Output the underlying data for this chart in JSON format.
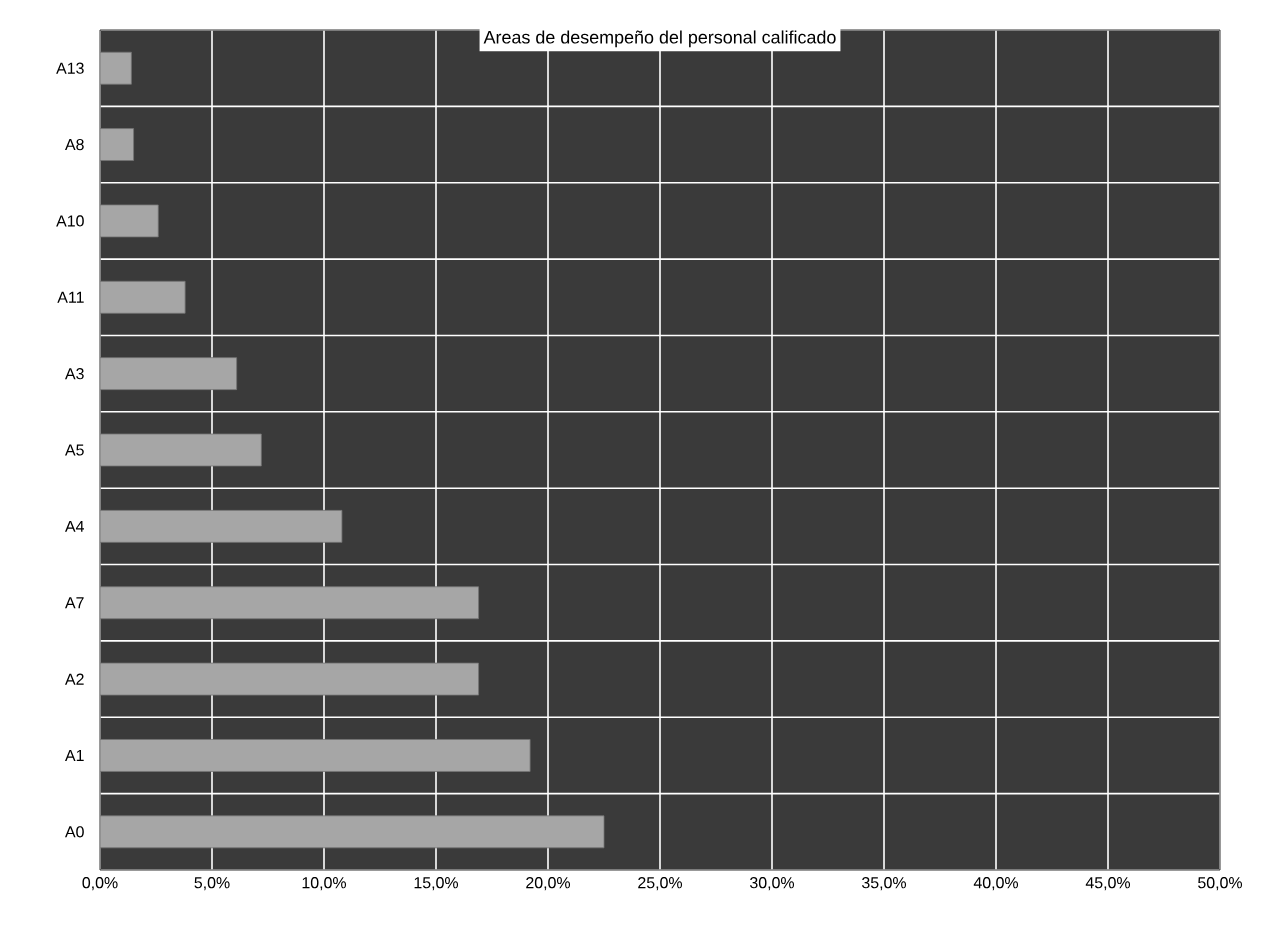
{
  "chart_data": {
    "type": "bar",
    "orientation": "horizontal",
    "title": "Areas de desempeño del personal calificado",
    "categories": [
      "A13",
      "A8",
      "A10",
      "A11",
      "A3",
      "A5",
      "A4",
      "A7",
      "A2",
      "A1",
      "A0"
    ],
    "values": [
      1.4,
      1.5,
      2.6,
      3.8,
      6.1,
      7.2,
      10.8,
      16.9,
      16.9,
      19.2,
      22.5
    ],
    "color": "#a6a6a6",
    "xlim": [
      0,
      50
    ],
    "xticks": [
      {
        "value": 0,
        "label": "0,0%"
      },
      {
        "value": 5,
        "label": "5,0%"
      },
      {
        "value": 10,
        "label": "10,0%"
      },
      {
        "value": 15,
        "label": "15,0%"
      },
      {
        "value": 20,
        "label": "20,0%"
      },
      {
        "value": 25,
        "label": "25,0%"
      },
      {
        "value": 30,
        "label": "30,0%"
      },
      {
        "value": 35,
        "label": "35,0%"
      },
      {
        "value": 40,
        "label": "40,0%"
      },
      {
        "value": 45,
        "label": "45,0%"
      },
      {
        "value": 50,
        "label": "50,0%"
      }
    ],
    "grid": true
  }
}
